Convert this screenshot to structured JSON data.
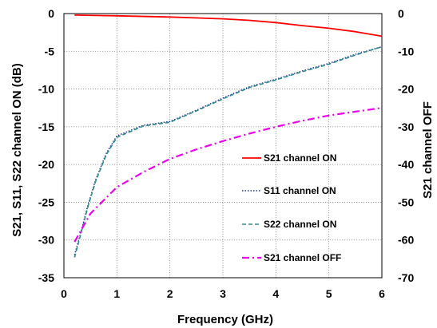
{
  "chart_data": {
    "type": "line",
    "xlabel": "Frequency (GHz)",
    "ylabel_left": "S21, S11, S22 channel ON (dB)",
    "ylabel_right": "S21 channel OFF",
    "xlim": [
      0,
      6
    ],
    "ylim_left": [
      -35,
      0
    ],
    "ylim_right": [
      -70,
      0
    ],
    "x_ticks": [
      "0",
      "1",
      "2",
      "3",
      "4",
      "5",
      "6"
    ],
    "y_ticks_left": [
      "0",
      "-5",
      "-10",
      "-15",
      "-20",
      "-25",
      "-30",
      "-35"
    ],
    "y_ticks_right": [
      "0",
      "-10",
      "-20",
      "-30",
      "-40",
      "-50",
      "-60",
      "-70"
    ],
    "grid": true,
    "legend_position": "inside-right",
    "series": [
      {
        "name": "S21 channel ON",
        "axis": "left",
        "color": "#ff0000",
        "style": "solid",
        "x": [
          0.2,
          1,
          2,
          3,
          3.5,
          4,
          4.5,
          5,
          5.5,
          6
        ],
        "y": [
          -0.2,
          -0.3,
          -0.45,
          -0.7,
          -0.9,
          -1.2,
          -1.6,
          -1.95,
          -2.4,
          -3.0
        ]
      },
      {
        "name": "S11 channel ON",
        "axis": "left",
        "color": "#1f2fa0",
        "style": "dotted",
        "x": [
          0.2,
          0.3,
          0.45,
          0.6,
          0.8,
          1,
          1.5,
          2,
          2.5,
          3,
          3.5,
          4,
          4.5,
          5,
          5.5,
          6
        ],
        "y": [
          -32,
          -29.5,
          -25.5,
          -22,
          -18.5,
          -16.2,
          -14.8,
          -14.3,
          -12.8,
          -11.2,
          -9.7,
          -8.7,
          -7.6,
          -6.6,
          -5.4,
          -4.4
        ]
      },
      {
        "name": "S22 channel ON",
        "axis": "left",
        "color": "#2e8b8b",
        "style": "dashed",
        "x": [
          0.2,
          0.3,
          0.45,
          0.6,
          0.8,
          1,
          1.5,
          2,
          2.5,
          3,
          3.5,
          4,
          4.5,
          5,
          5.5,
          6
        ],
        "y": [
          -32.3,
          -29.7,
          -25.7,
          -22.2,
          -18.7,
          -16.4,
          -14.9,
          -14.4,
          -12.9,
          -11.3,
          -9.8,
          -8.8,
          -7.7,
          -6.7,
          -5.5,
          -4.4
        ]
      },
      {
        "name": "S21 channel OFF",
        "axis": "right",
        "color": "#ee00ee",
        "style": "dashdot",
        "x": [
          0.2,
          0.5,
          1,
          1.5,
          2,
          2.5,
          3,
          3.5,
          4,
          4.5,
          5,
          5.5,
          6
        ],
        "y": [
          -60.5,
          -53,
          -46,
          -42,
          -38.5,
          -36,
          -33.8,
          -31.8,
          -30,
          -28.4,
          -27,
          -26,
          -25
        ]
      }
    ]
  }
}
